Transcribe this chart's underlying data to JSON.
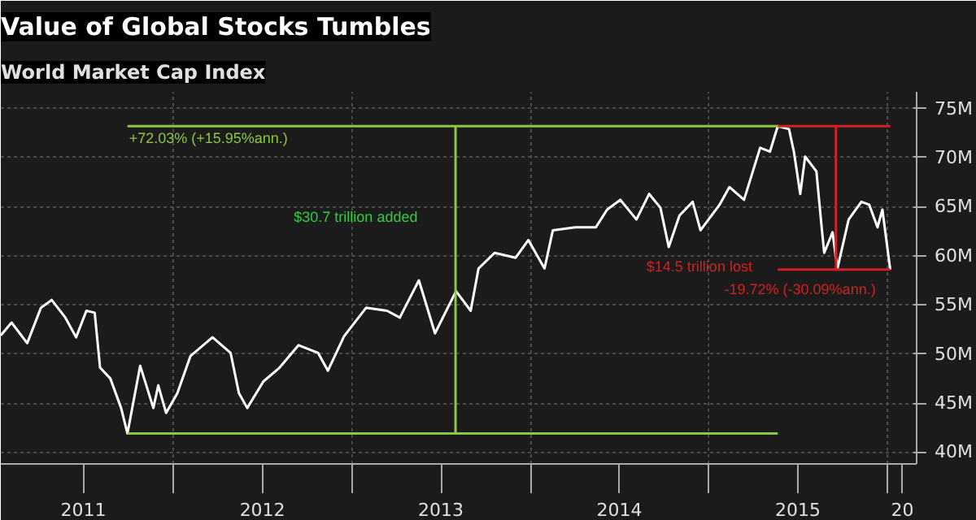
{
  "chart_data": {
    "type": "line",
    "title": "Value of Global Stocks Tumbles",
    "subtitle": "World Market Cap Index",
    "x": [
      "2011-01-14",
      "2011-02-05",
      "2011-03-09",
      "2011-04-06",
      "2011-04-28",
      "2011-05-26",
      "2011-06-17",
      "2011-07-08",
      "2011-07-25",
      "2011-08-05",
      "2011-08-26",
      "2011-09-17",
      "2011-09-30",
      "2011-10-26",
      "2011-11-22",
      "2011-12-02",
      "2011-12-18",
      "2012-01-10",
      "2012-02-06",
      "2012-03-22",
      "2012-04-28",
      "2012-05-15",
      "2012-06-01",
      "2012-07-04",
      "2012-08-06",
      "2012-09-14",
      "2012-10-24",
      "2012-11-13",
      "2012-12-16",
      "2013-01-30",
      "2013-03-14",
      "2013-04-09",
      "2013-05-18",
      "2013-06-20",
      "2013-08-02",
      "2013-09-01",
      "2013-09-17",
      "2013-10-20",
      "2013-12-02",
      "2013-12-28",
      "2014-01-30",
      "2014-02-16",
      "2014-04-03",
      "2014-05-15",
      "2014-06-07",
      "2014-07-04",
      "2014-08-06",
      "2014-09-01",
      "2014-09-24",
      "2014-10-11",
      "2014-11-02",
      "2014-11-29",
      "2014-12-15",
      "2015-01-23",
      "2015-02-12",
      "2015-03-14",
      "2015-04-16",
      "2015-05-06",
      "2015-05-22",
      "2015-06-14",
      "2015-06-24",
      "2015-07-07",
      "2015-07-17",
      "2015-08-09",
      "2015-08-19",
      "2015-08-25",
      "2015-09-11",
      "2015-09-21",
      "2015-10-14",
      "2015-11-09",
      "2015-11-25",
      "2015-12-12",
      "2015-12-22",
      "2016-01-07"
    ],
    "series": [
      {
        "color": "#ffffff",
        "values": [
          51.9,
          53.2,
          51.1,
          54.7,
          55.5,
          53.7,
          51.7,
          54.4,
          54.2,
          48.6,
          47.5,
          44.5,
          41.9,
          48.8,
          44.5,
          46.8,
          44.0,
          46.0,
          49.8,
          51.7,
          50.1,
          46.0,
          44.5,
          47.2,
          48.6,
          50.9,
          50.1,
          48.3,
          51.8,
          54.7,
          54.4,
          53.7,
          57.5,
          52.1,
          56.4,
          54.4,
          58.7,
          60.3,
          59.8,
          61.6,
          58.7,
          62.6,
          62.9,
          62.9,
          64.7,
          65.7,
          63.7,
          66.3,
          64.9,
          60.9,
          64.1,
          65.5,
          62.6,
          65.2,
          67.0,
          65.7,
          71.0,
          70.6,
          73.2,
          72.9,
          70.6,
          66.3,
          70.1,
          68.6,
          63.3,
          60.3,
          62.4,
          58.7,
          63.7,
          65.5,
          65.2,
          62.9,
          64.7,
          58.6
        ]
      },
      {
        "type": "line",
        "color": "#8dc63f",
        "x": [
          "2011-09-30",
          "2015-05-22"
        ],
        "values": [
          73.2,
          73.2
        ]
      },
      {
        "type": "line",
        "color": "#8dc63f",
        "x": [
          "2011-09-30",
          "2015-05-22"
        ],
        "values": [
          41.9,
          41.9
        ]
      },
      {
        "type": "line",
        "color": "#8dc63f",
        "x": [
          "2013-08-01",
          "2013-08-01"
        ],
        "values": [
          41.9,
          73.2
        ]
      },
      {
        "type": "line",
        "color": "#d42020",
        "x": [
          "2015-05-22",
          "2016-01-07"
        ],
        "values": [
          73.2,
          73.2
        ]
      },
      {
        "type": "line",
        "color": "#d42020",
        "x": [
          "2015-05-22",
          "2016-01-07"
        ],
        "values": [
          58.6,
          58.6
        ]
      },
      {
        "type": "line",
        "color": "#d42020",
        "x": [
          "2015-09-18",
          "2015-09-18"
        ],
        "values": [
          73.2,
          58.6
        ]
      }
    ],
    "annotations": [
      "+72.03% (+15.95%ann.)",
      "$30.7 trillion added",
      "$14.5 trillion lost",
      "-19.72% (-30.09%ann.)"
    ],
    "xlim": [
      "2011-01-14",
      "2016-03-01"
    ],
    "xticks": [
      {
        "value": "2011-07-02",
        "label": "2011"
      },
      {
        "value": "2012-01-01",
        "label": null
      },
      {
        "value": "2012-07-02",
        "label": "2012"
      },
      {
        "value": "2013-01-01",
        "label": null
      },
      {
        "value": "2013-07-02",
        "label": "2013"
      },
      {
        "value": "2014-01-01",
        "label": null
      },
      {
        "value": "2014-07-02",
        "label": "2014"
      },
      {
        "value": "2015-01-01",
        "label": null
      },
      {
        "value": "2015-07-02",
        "label": "2015"
      },
      {
        "value": "2016-01-01",
        "label": null
      },
      {
        "value": "2016-02-01",
        "label": "20"
      }
    ],
    "ylim": [
      38.8,
      76.7
    ],
    "yticks": [
      {
        "value": 40,
        "label": "40M"
      },
      {
        "value": 45,
        "label": "45M"
      },
      {
        "value": 50,
        "label": "50M"
      },
      {
        "value": 55,
        "label": "55M"
      },
      {
        "value": 60,
        "label": "60M"
      },
      {
        "value": 65,
        "label": "65M"
      },
      {
        "value": 70,
        "label": "70M"
      },
      {
        "value": 75,
        "label": "75M"
      }
    ],
    "grid": true,
    "line_style": "solid"
  }
}
